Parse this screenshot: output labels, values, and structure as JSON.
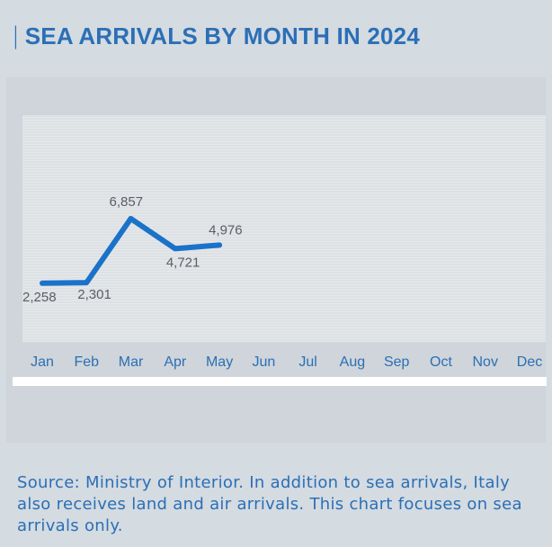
{
  "header": {
    "title": "SEA ARRIVALS BY MONTH IN 2024"
  },
  "footer": {
    "source": "Source: Ministry of Interior. In addition to sea arrivals, Italy also receives land and air arrivals. This chart focuses on sea arrivals only."
  },
  "colors": {
    "accent": "#2b6fb6",
    "line": "#1a73c8",
    "panel": "#cfd5da",
    "plot_bg": "#e6e9ec",
    "page_bg": "#d4dbe1"
  },
  "chart_data": {
    "type": "line",
    "title": "SEA ARRIVALS BY MONTH IN 2024",
    "categories": [
      "Jan",
      "Feb",
      "Mar",
      "Apr",
      "May",
      "Jun",
      "Jul",
      "Aug",
      "Sep",
      "Oct",
      "Nov",
      "Dec"
    ],
    "series": [
      {
        "values": [
          2258,
          2301,
          6857,
          4721,
          4976,
          null,
          null,
          null,
          null,
          null,
          null,
          null
        ]
      }
    ],
    "data_labels": [
      "2,258",
      "2,301",
      "6,857",
      "4,721",
      "4,976"
    ],
    "ylim": [
      0,
      20000
    ],
    "grid": true,
    "legend": "none"
  }
}
